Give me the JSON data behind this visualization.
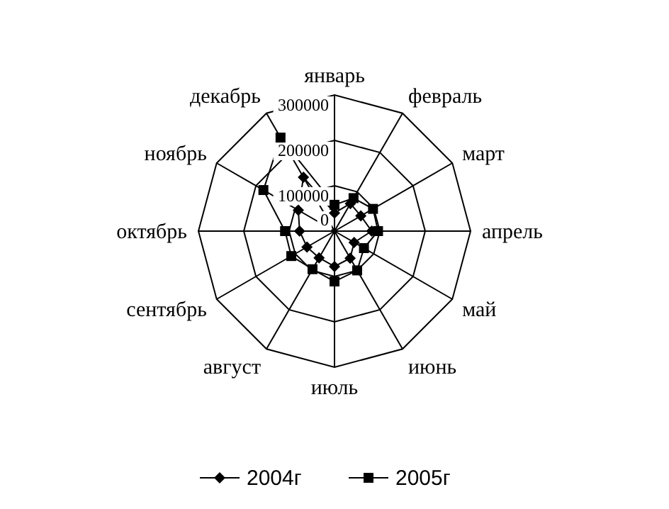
{
  "chart_data": {
    "type": "radar",
    "categories": [
      "январь",
      "февраль",
      "март",
      "апрель",
      "май",
      "июнь",
      "июль",
      "август",
      "сентябрь",
      "октябрь",
      "ноябрь",
      "декабрь"
    ],
    "series": [
      {
        "name": "2004г",
        "color": "#000000",
        "marker": "diamond",
        "values": [
          40000,
          70000,
          67000,
          82000,
          50000,
          69000,
          78000,
          68000,
          70000,
          77000,
          92000,
          137000
        ]
      },
      {
        "name": "2005г",
        "color": "#000000",
        "marker": "square",
        "values": [
          58000,
          84000,
          98000,
          96000,
          75000,
          100000,
          111000,
          97000,
          110000,
          109000,
          181000,
          238000
        ]
      }
    ],
    "ylim": [
      0,
      300000
    ],
    "yticks": [
      0,
      100000,
      200000,
      300000
    ],
    "grid": true,
    "legend": "bottom"
  }
}
